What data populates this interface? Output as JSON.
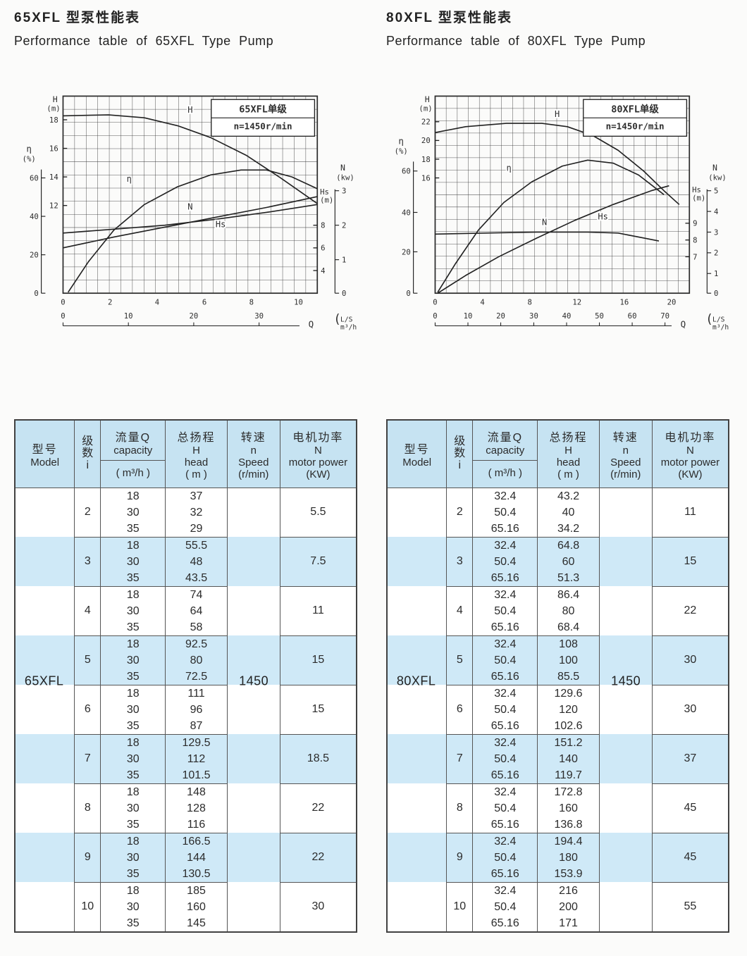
{
  "colors": {
    "stripe": "#cfe9f7",
    "header_bg": "#c6e3f2",
    "table_border": "#4a4a4a",
    "ink": "#2e2e2e"
  },
  "sections": [
    {
      "title_zh": "65XFL 型泵性能表",
      "title_en": "Performance  table  of  65XFL  Type  Pump"
    },
    {
      "title_zh": "80XFL 型泵性能表",
      "title_en": "Performance  table  of  80XFL  Type  Pump"
    }
  ],
  "table_headers": {
    "model_zh": "型号",
    "model_en": "Model",
    "stage_chars": "级 数 i",
    "capacity_zh": "流量Q",
    "capacity_en": "capacity",
    "capacity_unit": "( m³/h )",
    "head_zh": "总扬程",
    "head_sym": "H",
    "head_en": "head",
    "head_unit": "( m )",
    "speed_zh": "转速",
    "speed_sym": "n",
    "speed_en": "Speed",
    "speed_unit": "(r/min)",
    "power_zh": "电机功率",
    "power_sym": "N",
    "power_en": "motor power",
    "power_unit": "(KW)"
  },
  "tables": [
    {
      "model": "65XFL",
      "speed": "1450",
      "rows": [
        {
          "stage": "2",
          "q": [
            "18",
            "30",
            "35"
          ],
          "h": [
            "37",
            "32",
            "29"
          ],
          "power": "5.5"
        },
        {
          "stage": "3",
          "q": [
            "18",
            "30",
            "35"
          ],
          "h": [
            "55.5",
            "48",
            "43.5"
          ],
          "power": "7.5"
        },
        {
          "stage": "4",
          "q": [
            "18",
            "30",
            "35"
          ],
          "h": [
            "74",
            "64",
            "58"
          ],
          "power": "11"
        },
        {
          "stage": "5",
          "q": [
            "18",
            "30",
            "35"
          ],
          "h": [
            "92.5",
            "80",
            "72.5"
          ],
          "power": "15"
        },
        {
          "stage": "6",
          "q": [
            "18",
            "30",
            "35"
          ],
          "h": [
            "111",
            "96",
            "87"
          ],
          "power": "15"
        },
        {
          "stage": "7",
          "q": [
            "18",
            "30",
            "35"
          ],
          "h": [
            "129.5",
            "112",
            "101.5"
          ],
          "power": "18.5"
        },
        {
          "stage": "8",
          "q": [
            "18",
            "30",
            "35"
          ],
          "h": [
            "148",
            "128",
            "116"
          ],
          "power": "22"
        },
        {
          "stage": "9",
          "q": [
            "18",
            "30",
            "35"
          ],
          "h": [
            "166.5",
            "144",
            "130.5"
          ],
          "power": "22"
        },
        {
          "stage": "10",
          "q": [
            "18",
            "30",
            "35"
          ],
          "h": [
            "185",
            "160",
            "145"
          ],
          "power": "30"
        }
      ]
    },
    {
      "model": "80XFL",
      "speed": "1450",
      "rows": [
        {
          "stage": "2",
          "q": [
            "32.4",
            "50.4",
            "65.16"
          ],
          "h": [
            "43.2",
            "40",
            "34.2"
          ],
          "power": "11"
        },
        {
          "stage": "3",
          "q": [
            "32.4",
            "50.4",
            "65.16"
          ],
          "h": [
            "64.8",
            "60",
            "51.3"
          ],
          "power": "15"
        },
        {
          "stage": "4",
          "q": [
            "32.4",
            "50.4",
            "65.16"
          ],
          "h": [
            "86.4",
            "80",
            "68.4"
          ],
          "power": "22"
        },
        {
          "stage": "5",
          "q": [
            "32.4",
            "50.4",
            "65.16"
          ],
          "h": [
            "108",
            "100",
            "85.5"
          ],
          "power": "30"
        },
        {
          "stage": "6",
          "q": [
            "32.4",
            "50.4",
            "65.16"
          ],
          "h": [
            "129.6",
            "120",
            "102.6"
          ],
          "power": "30"
        },
        {
          "stage": "7",
          "q": [
            "32.4",
            "50.4",
            "65.16"
          ],
          "h": [
            "151.2",
            "140",
            "119.7"
          ],
          "power": "37"
        },
        {
          "stage": "8",
          "q": [
            "32.4",
            "50.4",
            "65.16"
          ],
          "h": [
            "172.8",
            "160",
            "136.8"
          ],
          "power": "45"
        },
        {
          "stage": "9",
          "q": [
            "32.4",
            "50.4",
            "65.16"
          ],
          "h": [
            "194.4",
            "180",
            "153.9"
          ],
          "power": "45"
        },
        {
          "stage": "10",
          "q": [
            "32.4",
            "50.4",
            "65.16"
          ],
          "h": [
            "216",
            "200",
            "171"
          ],
          "power": "55"
        }
      ]
    }
  ],
  "chart_data": [
    {
      "type": "line",
      "title": "65XFL单级",
      "subtitle": "n=1450r/min",
      "grid": [
        22,
        15
      ],
      "h_axis": {
        "sym": "H",
        "unit": "(m)",
        "ticks": [
          {
            "v": "18",
            "f": 0.88
          },
          {
            "v": "16",
            "f": 0.735
          },
          {
            "v": "14",
            "f": 0.59
          },
          {
            "v": "12",
            "f": 0.445
          }
        ]
      },
      "eta_axis": {
        "sym": "η",
        "unit": "(%)",
        "top_f": 0.6,
        "ticks": [
          {
            "v": "60",
            "f": 0.585
          },
          {
            "v": "40",
            "f": 0.39
          },
          {
            "v": "20",
            "f": 0.195
          },
          {
            "v": "0",
            "f": 0.0
          }
        ]
      },
      "n_axis": {
        "sym": "N",
        "unit": "(kw)",
        "top_f": 0.52,
        "ticks": [
          {
            "v": "3",
            "f": 0.52
          },
          {
            "v": "2",
            "f": 0.345
          },
          {
            "v": "1",
            "f": 0.17
          },
          {
            "v": "0",
            "f": 0.0
          }
        ]
      },
      "hs_axis": {
        "sym": "Hs",
        "unit": "(m)",
        "title_f": 0.46,
        "ticks": [
          {
            "v": "8",
            "f": 0.345
          },
          {
            "v": "6",
            "f": 0.23
          },
          {
            "v": "4",
            "f": 0.115
          }
        ]
      },
      "x_axis": {
        "q_label": "Q",
        "units": [
          "L/S",
          "m³/h"
        ],
        "ls_ticks": [
          {
            "v": "0",
            "f": 0.0
          },
          {
            "v": "2",
            "f": 0.185
          },
          {
            "v": "4",
            "f": 0.37
          },
          {
            "v": "6",
            "f": 0.556
          },
          {
            "v": "8",
            "f": 0.741
          },
          {
            "v": "10",
            "f": 0.926
          }
        ],
        "m3h_ticks": [
          {
            "v": "0",
            "f": 0.0
          },
          {
            "v": "10",
            "f": 0.257
          },
          {
            "v": "20",
            "f": 0.514
          },
          {
            "v": "30",
            "f": 0.771
          }
        ]
      },
      "curves": [
        {
          "name": "H",
          "label_pos": [
            0.5,
            0.915
          ],
          "pts": [
            [
              0,
              0.9
            ],
            [
              0.18,
              0.905
            ],
            [
              0.32,
              0.89
            ],
            [
              0.45,
              0.85
            ],
            [
              0.58,
              0.79
            ],
            [
              0.72,
              0.7
            ],
            [
              0.85,
              0.59
            ],
            [
              1.0,
              0.455
            ]
          ]
        },
        {
          "name": "η",
          "label_pos": [
            0.26,
            0.565
          ],
          "pts": [
            [
              0.02,
              0.005
            ],
            [
              0.1,
              0.16
            ],
            [
              0.2,
              0.32
            ],
            [
              0.32,
              0.45
            ],
            [
              0.45,
              0.54
            ],
            [
              0.58,
              0.6
            ],
            [
              0.7,
              0.625
            ],
            [
              0.8,
              0.625
            ],
            [
              0.9,
              0.59
            ],
            [
              1.0,
              0.53
            ]
          ]
        },
        {
          "name": "N",
          "label_pos": [
            0.5,
            0.425
          ],
          "pts": [
            [
              0,
              0.23
            ],
            [
              0.2,
              0.285
            ],
            [
              0.4,
              0.335
            ],
            [
              0.6,
              0.385
            ],
            [
              0.8,
              0.435
            ],
            [
              1.0,
              0.49
            ]
          ]
        },
        {
          "name": "Hs",
          "label_pos": [
            0.62,
            0.335
          ],
          "pts": [
            [
              0,
              0.305
            ],
            [
              0.2,
              0.325
            ],
            [
              0.4,
              0.345
            ],
            [
              0.6,
              0.375
            ],
            [
              0.8,
              0.41
            ],
            [
              1.0,
              0.45
            ]
          ]
        }
      ]
    },
    {
      "type": "line",
      "title": "80XFL单级",
      "subtitle": "n=1450r/min",
      "grid": [
        23,
        16
      ],
      "h_axis": {
        "sym": "H",
        "unit": "(m)",
        "ticks": [
          {
            "v": "22",
            "f": 0.87
          },
          {
            "v": "20",
            "f": 0.775
          },
          {
            "v": "18",
            "f": 0.68
          },
          {
            "v": "16",
            "f": 0.585
          }
        ]
      },
      "eta_axis": {
        "sym": "η",
        "unit": "(%)",
        "top_f": 0.64,
        "ticks": [
          {
            "v": "60",
            "f": 0.62
          },
          {
            "v": "40",
            "f": 0.41
          },
          {
            "v": "20",
            "f": 0.21
          },
          {
            "v": "0",
            "f": 0.0
          }
        ]
      },
      "n_axis": {
        "sym": "N",
        "unit": "(kw)",
        "top_f": 0.52,
        "ticks": [
          {
            "v": "5",
            "f": 0.52
          },
          {
            "v": "4",
            "f": 0.415
          },
          {
            "v": "3",
            "f": 0.31
          },
          {
            "v": "2",
            "f": 0.205
          },
          {
            "v": "1",
            "f": 0.1
          },
          {
            "v": "0",
            "f": 0.0
          }
        ]
      },
      "hs_axis": {
        "sym": "Hs",
        "unit": "(m)",
        "title_f": 0.47,
        "ticks": [
          {
            "v": "9",
            "f": 0.355
          },
          {
            "v": "8",
            "f": 0.27
          },
          {
            "v": "7",
            "f": 0.185
          }
        ]
      },
      "x_axis": {
        "q_label": "Q",
        "units": [
          "L/S",
          "m³/h"
        ],
        "ls_ticks": [
          {
            "v": "0",
            "f": 0.0
          },
          {
            "v": "4",
            "f": 0.186
          },
          {
            "v": "8",
            "f": 0.372
          },
          {
            "v": "12",
            "f": 0.558
          },
          {
            "v": "16",
            "f": 0.744
          },
          {
            "v": "20",
            "f": 0.93
          }
        ],
        "m3h_ticks": [
          {
            "v": "0",
            "f": 0.0
          },
          {
            "v": "10",
            "f": 0.129
          },
          {
            "v": "20",
            "f": 0.258
          },
          {
            "v": "30",
            "f": 0.388
          },
          {
            "v": "40",
            "f": 0.517
          },
          {
            "v": "50",
            "f": 0.646
          },
          {
            "v": "60",
            "f": 0.775
          },
          {
            "v": "70",
            "f": 0.904
          }
        ]
      },
      "curves": [
        {
          "name": "H",
          "label_pos": [
            0.48,
            0.895
          ],
          "pts": [
            [
              0,
              0.815
            ],
            [
              0.12,
              0.845
            ],
            [
              0.28,
              0.862
            ],
            [
              0.42,
              0.862
            ],
            [
              0.52,
              0.845
            ],
            [
              0.62,
              0.8
            ],
            [
              0.72,
              0.725
            ],
            [
              0.82,
              0.62
            ],
            [
              0.9,
              0.52
            ],
            [
              0.96,
              0.45
            ]
          ]
        },
        {
          "name": "η",
          "label_pos": [
            0.29,
            0.62
          ],
          "pts": [
            [
              0.01,
              0.005
            ],
            [
              0.08,
              0.15
            ],
            [
              0.17,
              0.32
            ],
            [
              0.27,
              0.46
            ],
            [
              0.38,
              0.565
            ],
            [
              0.5,
              0.645
            ],
            [
              0.6,
              0.675
            ],
            [
              0.7,
              0.66
            ],
            [
              0.8,
              0.6
            ],
            [
              0.9,
              0.5
            ]
          ]
        },
        {
          "name": "N",
          "label_pos": [
            0.43,
            0.345
          ],
          "pts": [
            [
              0.01,
              0.0
            ],
            [
              0.12,
              0.09
            ],
            [
              0.25,
              0.185
            ],
            [
              0.4,
              0.28
            ],
            [
              0.55,
              0.37
            ],
            [
              0.7,
              0.45
            ],
            [
              0.85,
              0.52
            ],
            [
              0.92,
              0.545
            ]
          ]
        },
        {
          "name": "Hs",
          "label_pos": [
            0.66,
            0.375
          ],
          "pts": [
            [
              0,
              0.3
            ],
            [
              0.2,
              0.305
            ],
            [
              0.4,
              0.31
            ],
            [
              0.6,
              0.31
            ],
            [
              0.72,
              0.305
            ],
            [
              0.82,
              0.28
            ],
            [
              0.88,
              0.265
            ]
          ]
        }
      ]
    }
  ]
}
